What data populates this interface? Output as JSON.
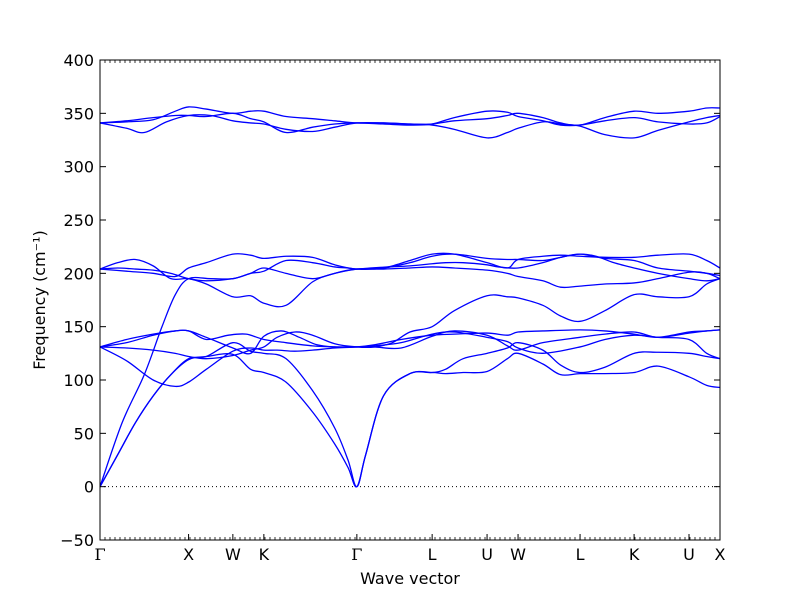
{
  "chart_data": {
    "type": "line",
    "title": "",
    "xlabel": "Wave vector",
    "ylabel": "Frequency (cm⁻¹)",
    "ylim": [
      -50,
      400
    ],
    "yticks": [
      -50,
      0,
      50,
      100,
      150,
      200,
      250,
      300,
      350,
      400
    ],
    "xlim": [
      0,
      7.0
    ],
    "x_path_labels": [
      {
        "label": "Γ",
        "x": 0.0
      },
      {
        "label": "X",
        "x": 1.0
      },
      {
        "label": "W",
        "x": 1.5
      },
      {
        "label": "K",
        "x": 1.85
      },
      {
        "label": "Γ",
        "x": 2.9
      },
      {
        "label": "L",
        "x": 3.75
      },
      {
        "label": "U",
        "x": 4.37
      },
      {
        "label": "W",
        "x": 4.72
      },
      {
        "label": "L",
        "x": 5.42
      },
      {
        "label": "K",
        "x": 6.03
      },
      {
        "label": "U",
        "x": 6.65
      },
      {
        "label": "X",
        "x": 7.0
      }
    ],
    "zero_line": true,
    "grid": false,
    "line_color": "#0000ff",
    "series": [
      {
        "x": [
          0,
          0.25,
          0.5,
          0.7,
          0.85,
          1.0,
          1.25,
          1.5,
          1.7,
          1.85,
          2.1,
          2.4,
          2.65,
          2.8,
          2.9,
          3.05,
          3.25,
          3.5,
          3.75,
          3.9,
          4.1,
          4.37,
          4.5,
          4.72,
          5.0,
          5.2,
          5.42,
          5.6,
          5.8,
          6.03,
          6.3,
          6.65,
          6.85,
          7.0
        ],
        "y": [
          0,
          60,
          105,
          150,
          180,
          195,
          195,
          195,
          200,
          202,
          212,
          210,
          206,
          205,
          204,
          205,
          206,
          207,
          209,
          210,
          210,
          208,
          206,
          205,
          210,
          215,
          218,
          216,
          210,
          205,
          200,
          195,
          193,
          195
        ]
      },
      {
        "x": [
          0,
          0.2,
          0.4,
          0.6,
          0.8,
          1.0,
          1.2,
          1.5,
          1.7,
          1.85,
          2.1,
          2.4,
          2.65,
          2.8,
          2.9,
          3.0,
          3.2,
          3.5,
          3.75,
          3.9,
          4.1,
          4.37,
          4.6,
          4.72,
          5.0,
          5.2,
          5.42,
          5.7,
          6.03,
          6.3,
          6.65,
          6.85,
          7.0
        ],
        "y": [
          0,
          30,
          60,
          85,
          105,
          120,
          122,
          135,
          127,
          125,
          120,
          90,
          55,
          25,
          0,
          30,
          85,
          106,
          107,
          106,
          107,
          108,
          120,
          125,
          115,
          105,
          106,
          106,
          107,
          113,
          103,
          95,
          93
        ]
      },
      {
        "x": [
          0,
          0.2,
          0.4,
          0.6,
          0.8,
          1.0,
          1.2,
          1.5,
          1.7,
          1.85,
          2.1,
          2.4,
          2.65,
          2.8,
          2.9,
          3.0,
          3.2,
          3.5,
          3.75,
          3.9,
          4.1,
          4.37,
          4.6,
          4.72,
          5.0,
          5.2,
          5.42,
          5.7,
          6.03,
          6.3,
          6.65,
          6.85,
          7.0
        ],
        "y": [
          0,
          30,
          60,
          85,
          105,
          119,
          122,
          124,
          110,
          107,
          98,
          70,
          40,
          18,
          0,
          30,
          85,
          106,
          107,
          110,
          120,
          125,
          130,
          135,
          128,
          114,
          107,
          112,
          125,
          126,
          125,
          122,
          120
        ]
      },
      {
        "x": [
          0,
          0.3,
          0.6,
          0.85,
          1.0,
          1.2,
          1.5,
          1.7,
          1.85,
          2.0,
          2.2,
          2.4,
          2.65,
          2.9,
          3.1,
          3.4,
          3.75,
          4.0,
          4.37,
          4.6,
          4.72,
          5.0,
          5.42,
          5.7,
          6.03,
          6.3,
          6.65,
          6.85,
          7.0
        ],
        "y": [
          131,
          118,
          100,
          94,
          98,
          110,
          127,
          130,
          128,
          128,
          127,
          128,
          130,
          131,
          133,
          138,
          142,
          143,
          144,
          142,
          145,
          146,
          147,
          146,
          143,
          140,
          145,
          146,
          147
        ]
      },
      {
        "x": [
          0,
          0.3,
          0.6,
          0.85,
          1.0,
          1.2,
          1.5,
          1.7,
          1.85,
          2.05,
          2.25,
          2.45,
          2.65,
          2.9,
          3.1,
          3.4,
          3.75,
          4.0,
          4.37,
          4.6,
          4.72,
          5.0,
          5.42,
          5.7,
          6.03,
          6.3,
          6.65,
          6.85,
          7.0
        ],
        "y": [
          131,
          135,
          142,
          146,
          146,
          140,
          130,
          125,
          141,
          146,
          140,
          133,
          131,
          131,
          131,
          130,
          141,
          146,
          142,
          132,
          128,
          135,
          140,
          143,
          145,
          140,
          144,
          146,
          147
        ]
      },
      {
        "x": [
          0,
          0.3,
          0.6,
          0.85,
          1.0,
          1.2,
          1.45,
          1.65,
          1.85,
          2.1,
          2.4,
          2.65,
          2.9,
          3.1,
          3.4,
          3.75,
          4.0,
          4.37,
          4.6,
          4.72,
          5.0,
          5.42,
          5.7,
          6.03,
          6.3,
          6.65,
          6.85,
          7.0
        ],
        "y": [
          131,
          138,
          143,
          146,
          146,
          138,
          142,
          143,
          138,
          135,
          132,
          131,
          131,
          132,
          135,
          143,
          145,
          140,
          136,
          130,
          125,
          131,
          138,
          142,
          140,
          138,
          125,
          120
        ]
      },
      {
        "x": [
          0,
          0.3,
          0.6,
          0.85,
          1.0,
          1.2,
          1.5,
          1.7,
          1.85,
          2.0,
          2.2,
          2.4,
          2.65,
          2.9,
          3.1,
          3.3,
          3.5,
          3.75,
          4.0,
          4.37,
          4.6,
          4.72,
          5.0,
          5.2,
          5.42,
          5.7,
          6.03,
          6.3,
          6.65,
          6.85,
          7.0
        ],
        "y": [
          131,
          130,
          128,
          125,
          122,
          120,
          123,
          128,
          131,
          140,
          145,
          142,
          134,
          131,
          131,
          135,
          145,
          150,
          165,
          179,
          178,
          177,
          170,
          160,
          155,
          165,
          180,
          178,
          178,
          190,
          195
        ]
      },
      {
        "x": [
          0,
          0.2,
          0.4,
          0.6,
          0.8,
          1.0,
          1.2,
          1.5,
          1.7,
          1.85,
          2.1,
          2.4,
          2.65,
          2.9,
          3.2,
          3.5,
          3.75,
          4.0,
          4.37,
          4.6,
          4.72,
          5.0,
          5.2,
          5.42,
          5.7,
          6.03,
          6.3,
          6.65,
          6.85,
          7.0
        ],
        "y": [
          204,
          210,
          213,
          207,
          195,
          195,
          190,
          178,
          179,
          172,
          170,
          192,
          200,
          204,
          204,
          205,
          206,
          205,
          203,
          200,
          197,
          193,
          187,
          188,
          190,
          191,
          195,
          201,
          200,
          195
        ]
      },
      {
        "x": [
          0,
          0.2,
          0.4,
          0.6,
          0.8,
          1.0,
          1.2,
          1.5,
          1.7,
          1.85,
          2.1,
          2.4,
          2.65,
          2.9,
          3.2,
          3.5,
          3.75,
          4.0,
          4.37,
          4.6,
          4.72,
          5.0,
          5.2,
          5.42,
          5.7,
          6.03,
          6.3,
          6.65,
          6.85,
          7.0
        ],
        "y": [
          204,
          205,
          204,
          203,
          200,
          195,
          193,
          195,
          200,
          205,
          200,
          195,
          200,
          204,
          205,
          210,
          216,
          218,
          214,
          213,
          213,
          212,
          215,
          218,
          214,
          212,
          205,
          202,
          200,
          198
        ]
      },
      {
        "x": [
          0,
          0.3,
          0.6,
          0.85,
          1.0,
          1.2,
          1.5,
          1.7,
          1.85,
          2.1,
          2.4,
          2.65,
          2.9,
          3.2,
          3.5,
          3.75,
          4.0,
          4.37,
          4.6,
          4.72,
          5.0,
          5.2,
          5.42,
          5.7,
          6.03,
          6.3,
          6.65,
          6.85,
          7.0
        ],
        "y": [
          204,
          202,
          200,
          197,
          205,
          210,
          218,
          217,
          214,
          216,
          215,
          208,
          204,
          205,
          212,
          218,
          218,
          210,
          205,
          213,
          216,
          217,
          216,
          215,
          215,
          217,
          218,
          212,
          205
        ]
      },
      {
        "x": [
          0,
          0.3,
          0.5,
          0.75,
          1.0,
          1.25,
          1.5,
          1.7,
          1.85,
          2.1,
          2.4,
          2.65,
          2.9,
          3.2,
          3.5,
          3.75,
          4.0,
          4.37,
          4.6,
          4.72,
          5.0,
          5.2,
          5.42,
          5.7,
          6.03,
          6.3,
          6.65,
          6.85,
          7.0
        ],
        "y": [
          341,
          336,
          332,
          342,
          348,
          348,
          343,
          341,
          340,
          335,
          333,
          337,
          341,
          341,
          340,
          339,
          335,
          327,
          332,
          336,
          342,
          340,
          338,
          330,
          327,
          334,
          342,
          346,
          348
        ]
      },
      {
        "x": [
          0,
          0.3,
          0.6,
          0.85,
          1.0,
          1.2,
          1.5,
          1.7,
          1.85,
          2.1,
          2.4,
          2.65,
          2.9,
          3.2,
          3.5,
          3.75,
          4.0,
          4.37,
          4.6,
          4.72,
          5.0,
          5.2,
          5.42,
          5.7,
          6.03,
          6.3,
          6.65,
          6.85,
          7.0
        ],
        "y": [
          341,
          343,
          346,
          348,
          348,
          347,
          350,
          345,
          342,
          332,
          337,
          340,
          341,
          340,
          339,
          340,
          346,
          352,
          351,
          347,
          343,
          339,
          339,
          343,
          346,
          342,
          340,
          341,
          347
        ]
      },
      {
        "x": [
          0,
          0.3,
          0.6,
          0.85,
          1.0,
          1.2,
          1.5,
          1.7,
          1.85,
          2.1,
          2.4,
          2.65,
          2.9,
          3.2,
          3.5,
          3.75,
          4.0,
          4.37,
          4.6,
          4.72,
          5.0,
          5.2,
          5.42,
          5.7,
          6.03,
          6.3,
          6.65,
          6.85,
          7.0
        ],
        "y": [
          341,
          342,
          344,
          352,
          356,
          354,
          350,
          352,
          352,
          347,
          345,
          343,
          341,
          341,
          340,
          340,
          343,
          345,
          348,
          350,
          346,
          341,
          339,
          346,
          352,
          350,
          352,
          355,
          355
        ]
      }
    ]
  }
}
